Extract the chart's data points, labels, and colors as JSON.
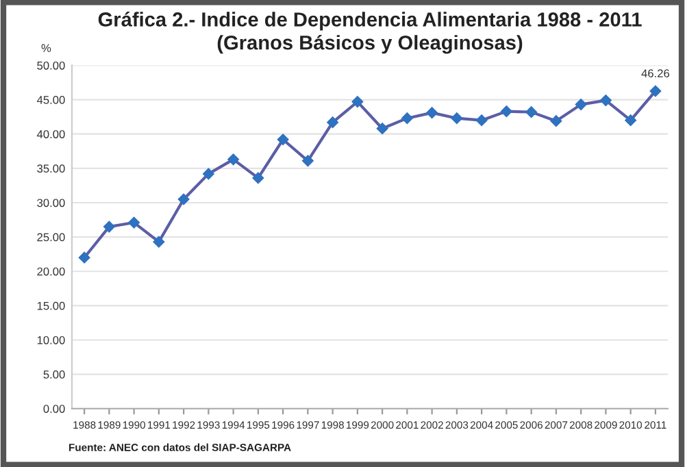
{
  "chart_data": {
    "type": "line",
    "title": "Gráfica 2.- Indice de Dependencia Alimentaria 1988 - 2011\n(Granos Básicos y Oleaginosas)",
    "ylabel": "%",
    "categories": [
      "1988",
      "1989",
      "1990",
      "1991",
      "1992",
      "1993",
      "1994",
      "1995",
      "1996",
      "1997",
      "1998",
      "1999",
      "2000",
      "2001",
      "2002",
      "2003",
      "2004",
      "2005",
      "2006",
      "2007",
      "2008",
      "2009",
      "2010",
      "2011"
    ],
    "series": [
      {
        "color": "#5b5ea6",
        "colors": [
          "#2f72c0",
          "#2f72c0",
          "#2f72c0",
          "#2f72c0",
          "#2f72c0",
          "#2f72c0",
          "#2f72c0",
          "#2f72c0",
          "#2f72c0",
          "#2f72c0",
          "#2f72c0",
          "#2f72c0",
          "#2f72c0",
          "#2f72c0",
          "#2f72c0",
          "#2f72c0",
          "#2f72c0",
          "#2f72c0",
          "#2f72c0",
          "#2f72c0",
          "#2f72c0",
          "#2f72c0",
          "#2f72c0",
          "#2f72c0"
        ],
        "values": [
          22.0,
          26.5,
          27.1,
          24.3,
          30.5,
          34.2,
          36.3,
          33.6,
          39.2,
          36.1,
          41.7,
          44.7,
          40.8,
          42.3,
          43.1,
          42.3,
          42.0,
          43.3,
          43.2,
          41.9,
          44.3,
          44.9,
          42.0,
          46.26
        ],
        "value_labels": [
          null,
          null,
          null,
          null,
          null,
          null,
          null,
          null,
          null,
          null,
          null,
          null,
          null,
          null,
          null,
          null,
          null,
          null,
          null,
          null,
          null,
          null,
          null,
          "46.26"
        ]
      }
    ],
    "ylim": [
      0,
      50
    ],
    "yticks": [
      "0.00",
      "5.00",
      "10.00",
      "15.00",
      "20.00",
      "25.00",
      "30.00",
      "35.00",
      "40.00",
      "45.00",
      "50.00"
    ],
    "grid": "y",
    "marker": "diamond",
    "line_style": "solid",
    "annotations": [
      "Fuente: ANEC con datos del SIAP-SAGARPA"
    ]
  }
}
